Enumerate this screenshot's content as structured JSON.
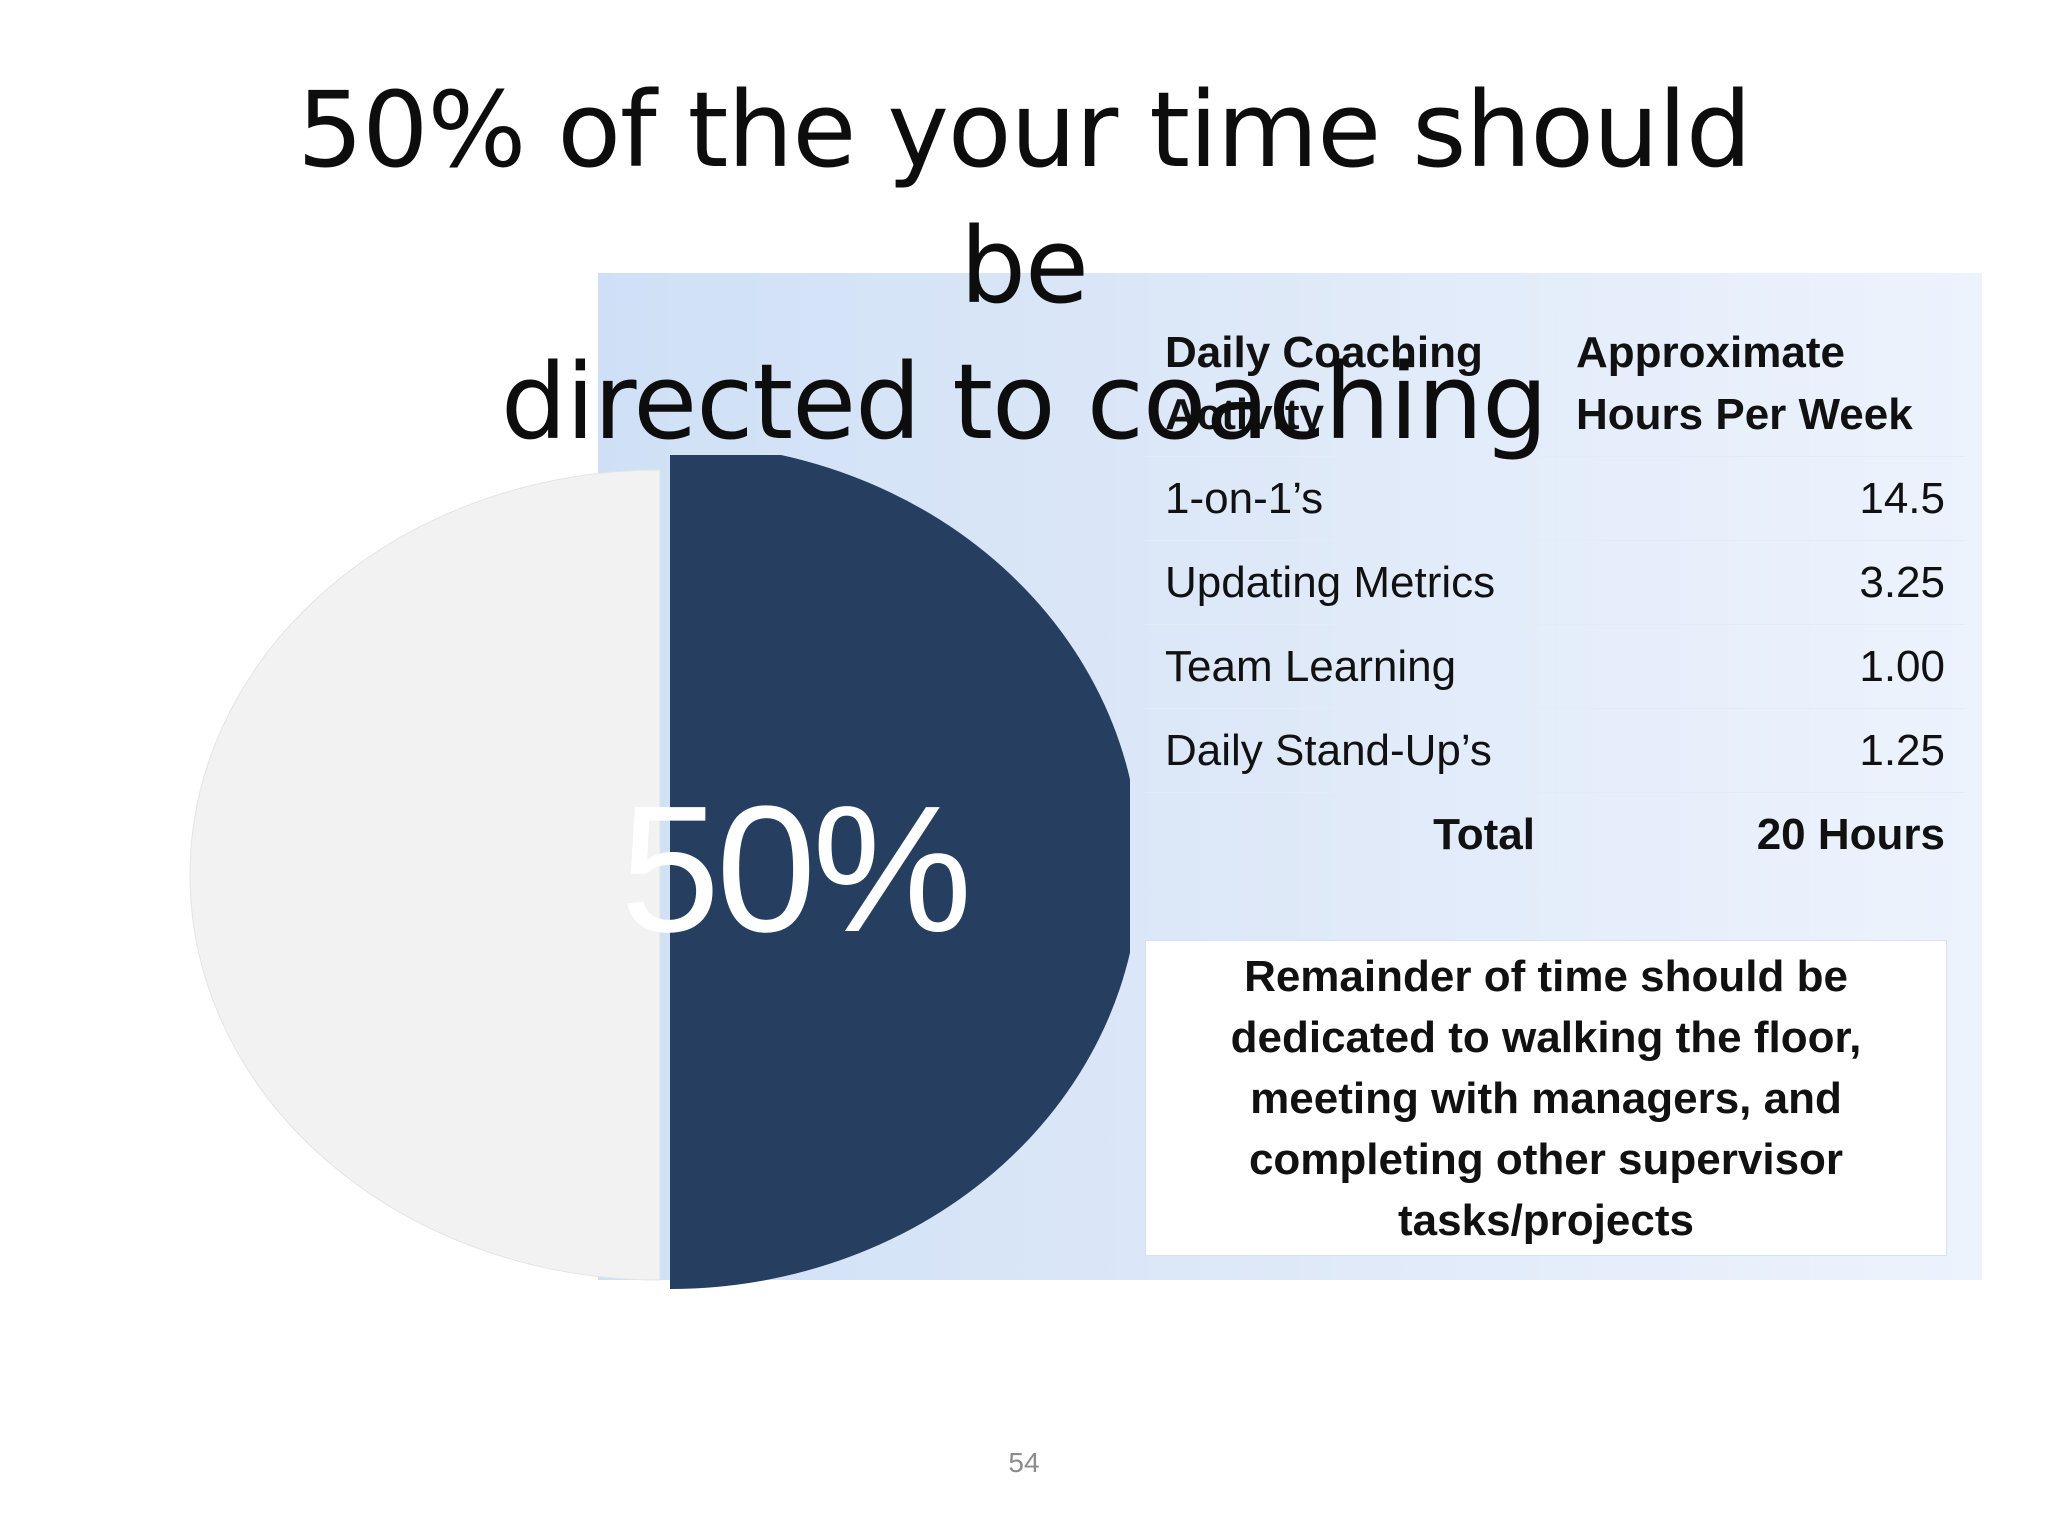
{
  "slide": {
    "title_line1": "50% of the your time should be",
    "title_line2": "directed to coaching",
    "slide_number": "54"
  },
  "pie": {
    "label": "50%",
    "coaching_share": 0.5,
    "colors": {
      "coaching": "#263f61",
      "remainder": "#f2f2f2"
    }
  },
  "table": {
    "headers": [
      "Daily Coaching Activity",
      "Approximate Hours Per Week"
    ],
    "rows": [
      {
        "activity": "1-on-1’s",
        "hours": "14.5"
      },
      {
        "activity": "Updating Metrics",
        "hours": "3.25"
      },
      {
        "activity": "Team Learning",
        "hours": "1.00"
      },
      {
        "activity": "Daily Stand-Up’s",
        "hours": "1.25"
      }
    ],
    "total": {
      "label": "Total",
      "hours": "20 Hours"
    }
  },
  "remainder_note": "Remainder of time should be dedicated to walking the floor, meeting with managers, and completing other supervisor tasks/projects",
  "colors": {
    "panel_gradient_start": "#cfe0f6",
    "panel_gradient_end": "#edf3fd",
    "title_text": "#0d0d0d"
  }
}
